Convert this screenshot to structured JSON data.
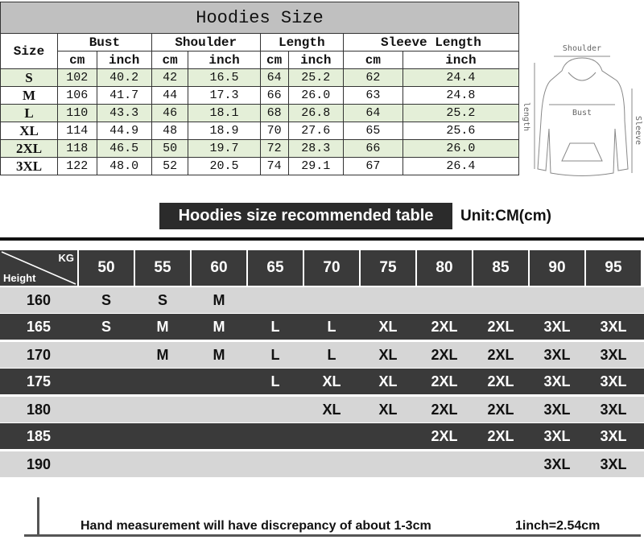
{
  "size_chart": {
    "title": "Hoodies Size",
    "size_header": "Size",
    "groups": [
      "Bust",
      "Shoulder",
      "Length",
      "Sleeve Length"
    ],
    "units": [
      "cm",
      "inch"
    ],
    "rows": [
      {
        "size": "S",
        "values": [
          "102",
          "40.2",
          "42",
          "16.5",
          "64",
          "25.2",
          "62",
          "24.4"
        ]
      },
      {
        "size": "M",
        "values": [
          "106",
          "41.7",
          "44",
          "17.3",
          "66",
          "26.0",
          "63",
          "24.8"
        ]
      },
      {
        "size": "L",
        "values": [
          "110",
          "43.3",
          "46",
          "18.1",
          "68",
          "26.8",
          "64",
          "25.2"
        ]
      },
      {
        "size": "XL",
        "values": [
          "114",
          "44.9",
          "48",
          "18.9",
          "70",
          "27.6",
          "65",
          "25.6"
        ]
      },
      {
        "size": "2XL",
        "values": [
          "118",
          "46.5",
          "50",
          "19.7",
          "72",
          "28.3",
          "66",
          "26.0"
        ]
      },
      {
        "size": "3XL",
        "values": [
          "122",
          "48.0",
          "52",
          "20.5",
          "74",
          "29.1",
          "67",
          "26.4"
        ]
      }
    ],
    "row_highlight_color": "#e4efd8"
  },
  "diagram": {
    "shoulder": "Shoulder",
    "bust": "Bust",
    "length": "length",
    "sleeve": "Sleeve"
  },
  "recommended": {
    "title": "Hoodies size recommended table",
    "unit": "Unit:CM(cm)",
    "corner_kg": "KG",
    "corner_height": "Height",
    "weights": [
      "50",
      "55",
      "60",
      "65",
      "70",
      "75",
      "80",
      "85",
      "90",
      "95"
    ],
    "rows": [
      {
        "height": "160",
        "sizes": [
          "S",
          "S",
          "M",
          "",
          "",
          "",
          "",
          "",
          "",
          ""
        ]
      },
      {
        "height": "165",
        "sizes": [
          "S",
          "M",
          "M",
          "L",
          "L",
          "XL",
          "2XL",
          "2XL",
          "3XL",
          "3XL"
        ]
      },
      {
        "height": "170",
        "sizes": [
          "",
          "M",
          "M",
          "L",
          "L",
          "XL",
          "2XL",
          "2XL",
          "3XL",
          "3XL"
        ]
      },
      {
        "height": "175",
        "sizes": [
          "",
          "",
          "",
          "L",
          "XL",
          "XL",
          "2XL",
          "2XL",
          "3XL",
          "3XL"
        ]
      },
      {
        "height": "180",
        "sizes": [
          "",
          "",
          "",
          "",
          "XL",
          "XL",
          "2XL",
          "2XL",
          "3XL",
          "3XL"
        ]
      },
      {
        "height": "185",
        "sizes": [
          "",
          "",
          "",
          "",
          "",
          "",
          "2XL",
          "2XL",
          "3XL",
          "3XL"
        ]
      },
      {
        "height": "190",
        "sizes": [
          "",
          "",
          "",
          "",
          "",
          "",
          "",
          "",
          "3XL",
          "3XL"
        ]
      }
    ]
  },
  "footer": {
    "note": "Hand measurement will have discrepancy of about 1-3cm",
    "conversion": "1inch=2.54cm"
  }
}
